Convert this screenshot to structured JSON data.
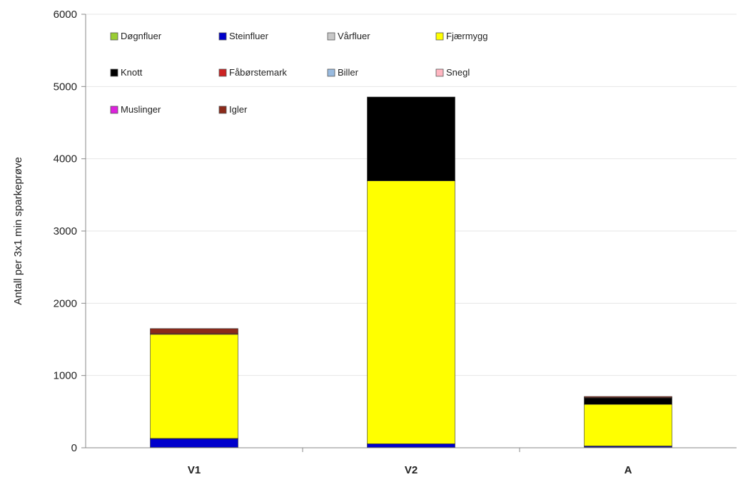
{
  "chart_data": {
    "type": "bar",
    "stacked": true,
    "title": "",
    "xlabel": "",
    "ylabel": "Antall per 3x1 min sparkeprøve",
    "ylim": [
      0,
      6000
    ],
    "yticks": [
      0,
      1000,
      2000,
      3000,
      4000,
      5000,
      6000
    ],
    "grid": true,
    "legend_position": "top-left",
    "categories": [
      "V1",
      "V2",
      "A"
    ],
    "series": [
      {
        "name": "Døgnfluer",
        "color": "#9acd32",
        "values": [
          5,
          5,
          5
        ]
      },
      {
        "name": "Steinfluer",
        "color": "#0000cc",
        "values": [
          120,
          50,
          15
        ]
      },
      {
        "name": "Vårfluer",
        "color": "#c8c8c8",
        "values": [
          5,
          0,
          5
        ]
      },
      {
        "name": "Fjærmygg",
        "color": "#ffff00",
        "values": [
          1440,
          3640,
          575
        ]
      },
      {
        "name": "Knott",
        "color": "#000000",
        "values": [
          0,
          1160,
          90
        ]
      },
      {
        "name": "Fåbørstemark",
        "color": "#cc2222",
        "values": [
          10,
          0,
          5
        ]
      },
      {
        "name": "Biller",
        "color": "#99bbe0",
        "values": [
          0,
          0,
          0
        ]
      },
      {
        "name": "Snegl",
        "color": "#ffb6c1",
        "values": [
          0,
          0,
          0
        ]
      },
      {
        "name": "Muslinger",
        "color": "#dd22dd",
        "values": [
          0,
          0,
          0
        ]
      },
      {
        "name": "Igler",
        "color": "#8b2a1a",
        "values": [
          70,
          0,
          15
        ]
      }
    ]
  }
}
